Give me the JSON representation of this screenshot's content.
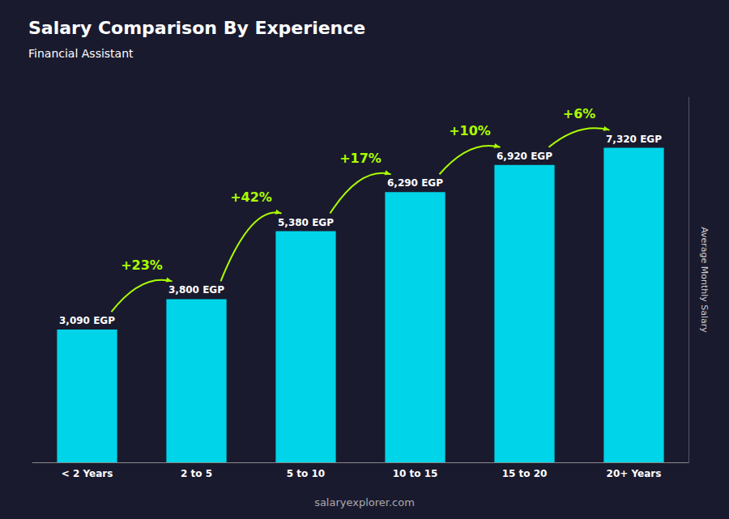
{
  "chart_data": {
    "type": "bar",
    "title": "Salary Comparison By Experience",
    "subtitle": "Financial Assistant",
    "categories": [
      "< 2 Years",
      "2 to 5",
      "5 to 10",
      "10 to 15",
      "15 to 20",
      "20+ Years"
    ],
    "values": [
      3090,
      3800,
      5380,
      6290,
      6920,
      7320
    ],
    "value_labels": [
      "3,090 EGP",
      "3,800 EGP",
      "5,380 EGP",
      "6,290 EGP",
      "6,920 EGP",
      "7,320 EGP"
    ],
    "data_labels": true,
    "color": "#00d4e8",
    "ylim": [
      0,
      8500
    ],
    "grid": false,
    "tick_labels": "x",
    "ylabel": "Average Monthly Salary",
    "annotations": [
      "+23%",
      "+42%",
      "+17%",
      "+10%",
      "+6%"
    ],
    "footer": "salaryexplorer.com"
  }
}
